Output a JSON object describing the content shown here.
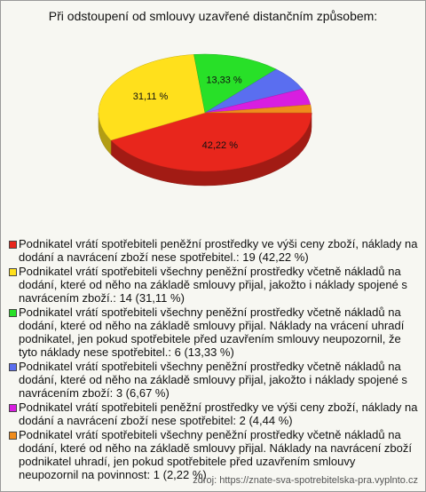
{
  "chart_data": {
    "type": "pie",
    "title": "Při odstoupení od smlouvy uzavřené distančním způsobem:",
    "categories": [
      "Podnikatel vrátí spotřebiteli peněžní prostředky ve výši ceny zboží, náklady na dodání a navrácení zboží nese spotřebitel.: 19 (42,22 %)",
      "Podnikatel vrátí spotřebiteli všechny peněžní prostředky včetně nákladů na dodání, které od něho na základě smlouvy přijal, jakožto i náklady spojené s navrácením zboží.: 14 (31,11 %)",
      "Podnikatel vrátí spotřebiteli všechny peněžní prostředky včetně nákladů na dodání, které od něho na základě smlouvy přijal. Náklady na vrácení uhradí podnikatel, jen pokud spotřebitele před uzavřením smlouvy neupozornil, že tyto náklady nese spotřebitel.: 6 (13,33 %)",
      "Podnikatel vrátí spotřebiteli všechny peněžní prostředky včetně nákladů na dodání, které od něho na základě smlouvy přijal, jakožto i náklady spojené s navrácením zboží: 3 (6,67 %)",
      "Podnikatel vrátí spotřebiteli peněžní prostředky ve výši ceny zboží, náklady na dodání a navrácení zboží nese spotřebitel: 2 (4,44 %)",
      "Podnikatel vrátí spotřebiteli všechny peněžní prostředky včetně nákladů na dodání, které od něho na základě smlouvy přijal. Náklady na navrácení zboží podnikatel uhradí, jen pokud spotřebitele před uzavřením smlouvy neupozornil na povinnost: 1 (2,22 %)"
    ],
    "values": [
      42.22,
      31.11,
      13.33,
      6.67,
      4.44,
      2.22
    ],
    "value_labels": [
      "42,22 %",
      "31,11 %",
      "13,33 %",
      null,
      null,
      null
    ],
    "colors": [
      "#e8261c",
      "#ffe01c",
      "#28e028",
      "#5a6ef0",
      "#d81ee0",
      "#f08c1c"
    ],
    "source": "zdroj: https://znate-sva-spotrebitelska-pra.vyplnto.cz"
  }
}
